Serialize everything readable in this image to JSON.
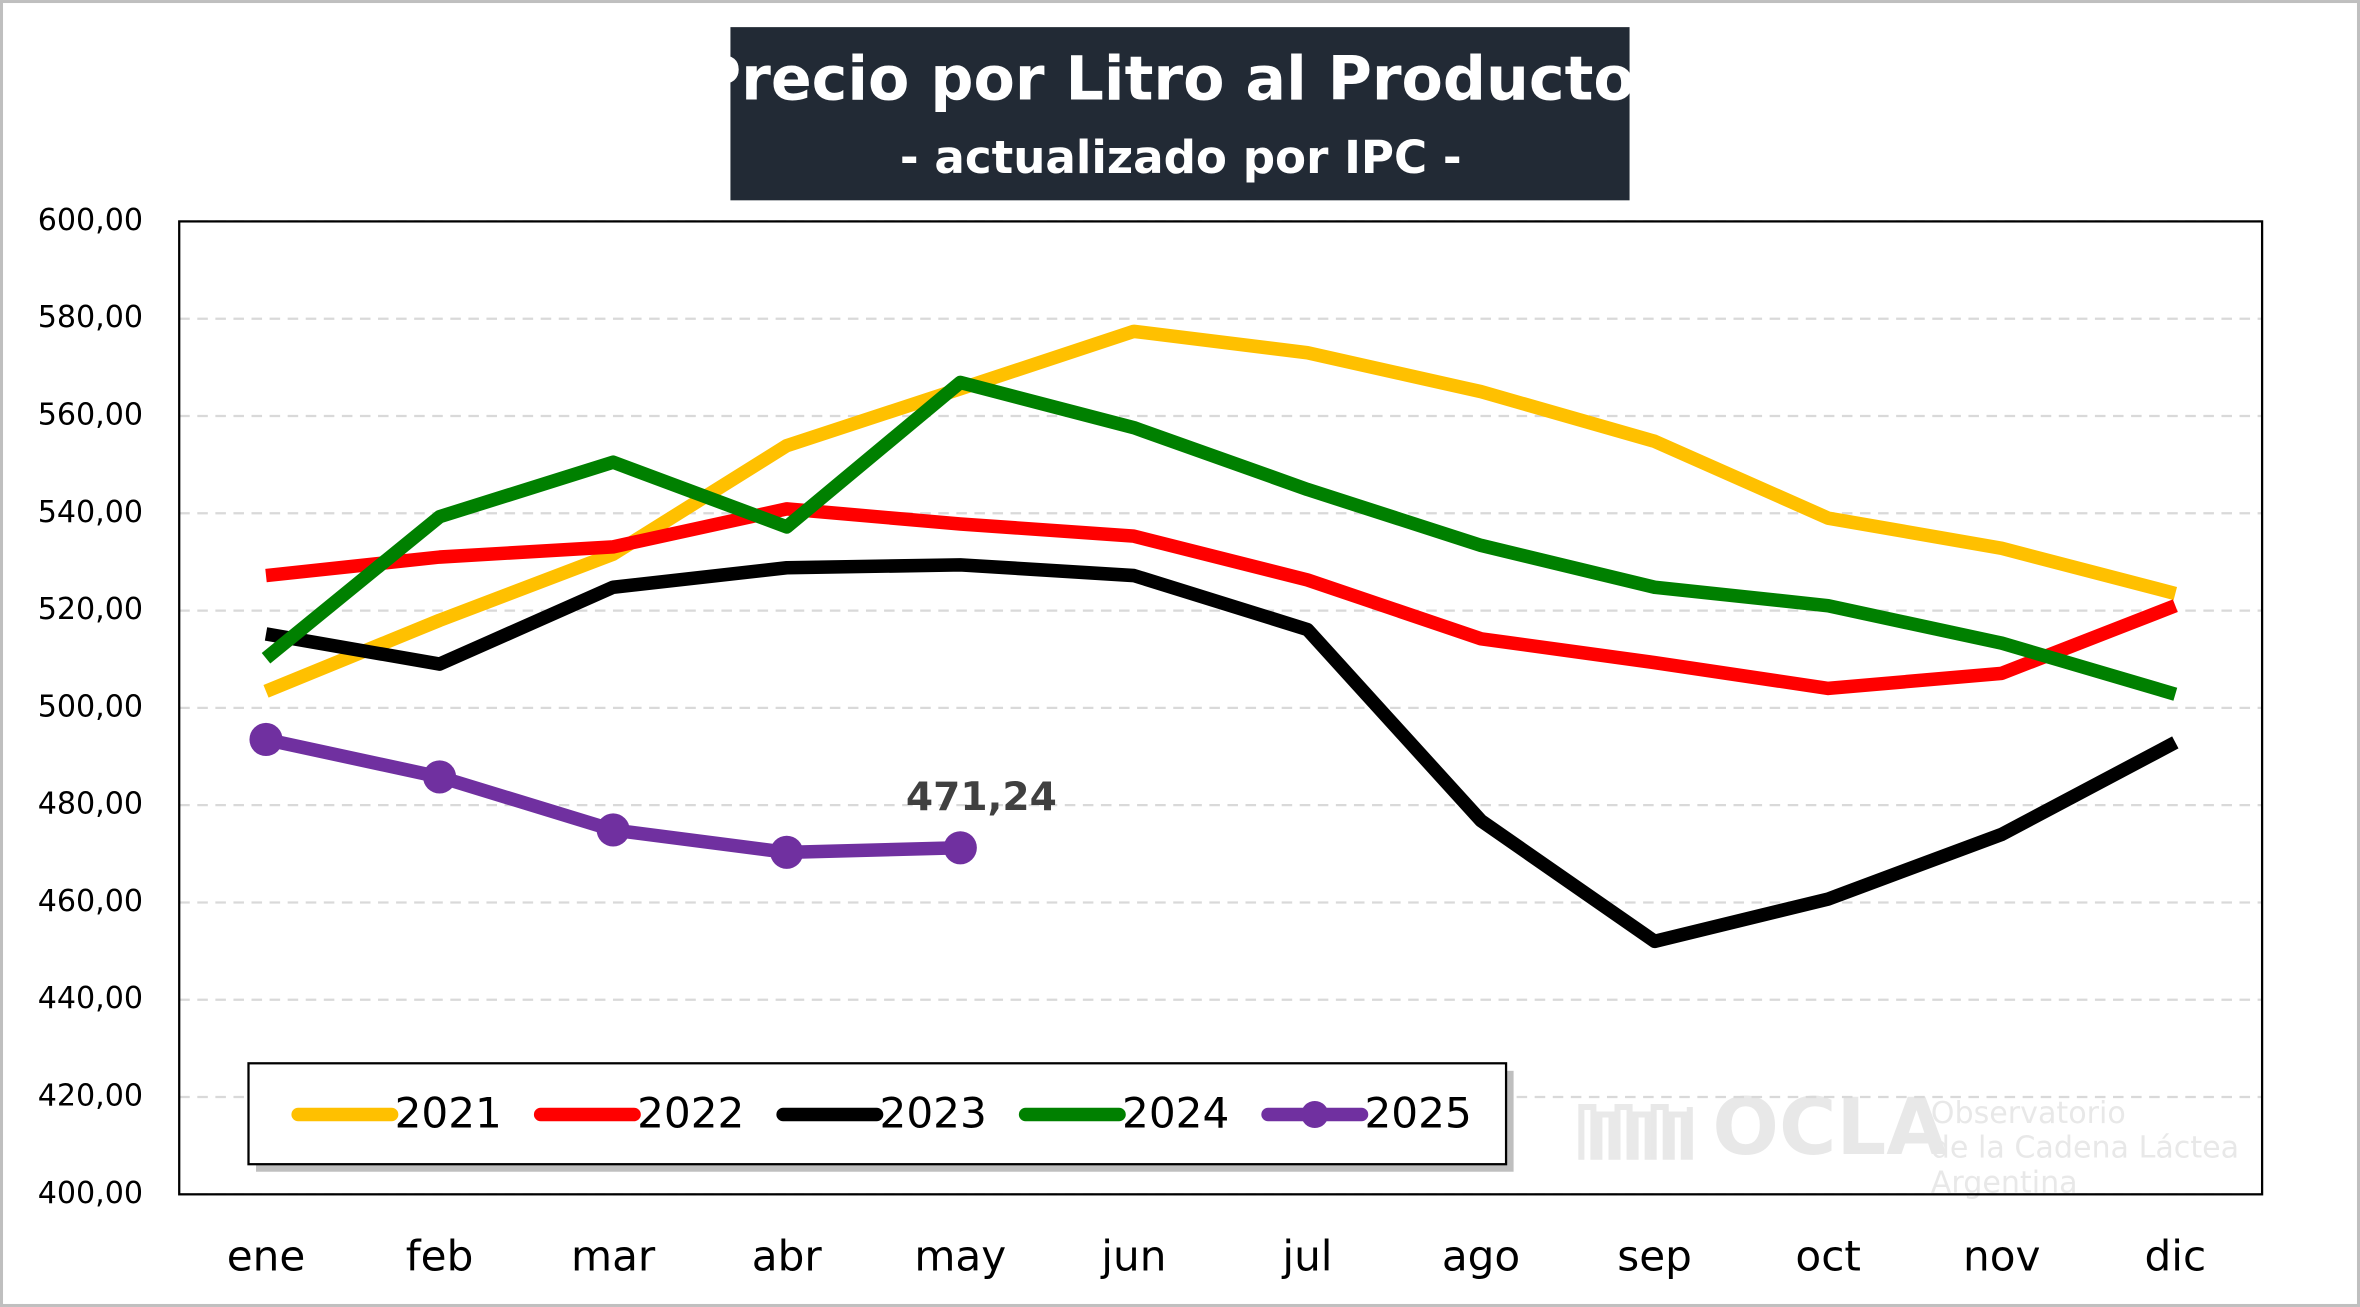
{
  "chart_data": {
    "type": "line",
    "title": "Precio por Litro al Productor",
    "subtitle": "- actualizado por IPC -",
    "categories": [
      "ene",
      "feb",
      "mar",
      "abr",
      "may",
      "jun",
      "jul",
      "ago",
      "sep",
      "oct",
      "nov",
      "dic"
    ],
    "series": [
      {
        "name": "2021",
        "color": "#ffc000",
        "values": [
          503.4,
          518,
          531.6,
          553.9,
          565.6,
          577.4,
          573,
          565,
          554.8,
          539,
          532.8,
          523.5
        ]
      },
      {
        "name": "2022",
        "color": "#ff0000",
        "values": [
          527.2,
          531,
          533.1,
          540.9,
          537.8,
          535.3,
          526.3,
          514.2,
          509.3,
          504,
          507.1,
          521
        ]
      },
      {
        "name": "2023",
        "color": "#000000",
        "values": [
          515.2,
          509,
          524.8,
          528.8,
          529.4,
          527.2,
          516.1,
          476.8,
          452,
          460.7,
          474,
          492.9
        ]
      },
      {
        "name": "2024",
        "color": "#008000",
        "values": [
          510.2,
          539.3,
          550.5,
          537.2,
          566.9,
          557.6,
          544.9,
          533.4,
          524.8,
          521,
          513.3,
          502.8
        ]
      },
      {
        "name": "2025",
        "color": "#7030a0",
        "markers": true,
        "values": [
          493.5,
          485.8,
          474.9,
          470.3,
          471.24,
          null,
          null,
          null,
          null,
          null,
          null,
          null
        ],
        "value_labels": [
          null,
          null,
          null,
          null,
          "471,24",
          null,
          null,
          null,
          null,
          null,
          null,
          null
        ]
      }
    ],
    "ylim": [
      400,
      600
    ],
    "yticks": [
      {
        "value": 400,
        "label": "400,00"
      },
      {
        "value": 420,
        "label": "420,00"
      },
      {
        "value": 440,
        "label": "440,00"
      },
      {
        "value": 460,
        "label": "460,00"
      },
      {
        "value": 480,
        "label": "480,00"
      },
      {
        "value": 500,
        "label": "500,00"
      },
      {
        "value": 520,
        "label": "520,00"
      },
      {
        "value": 540,
        "label": "540,00"
      },
      {
        "value": 560,
        "label": "560,00"
      },
      {
        "value": 580,
        "label": "580,00"
      },
      {
        "value": 600,
        "label": "600,00"
      }
    ],
    "grid": true,
    "legend": "bottom-left",
    "watermark": [
      "OCLA",
      "Observatorio",
      "de la Cadena Láctea",
      "Argentina"
    ]
  }
}
